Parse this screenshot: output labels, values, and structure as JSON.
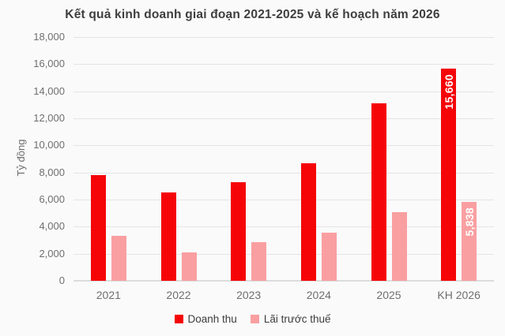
{
  "title": "Kết quả kinh doanh giai đoạn 2021-2025 và kế hoạch năm 2026",
  "chart_data": {
    "type": "bar",
    "title": "Kết quả kinh doanh giai đoạn 2021-2025 và kế hoạch năm 2026",
    "ylabel": "Tỷ đồng",
    "xlabel": "",
    "categories": [
      "2021",
      "2022",
      "2023",
      "2024",
      "2025",
      "KH 2026"
    ],
    "series": [
      {
        "name": "Doanh thu",
        "key": "doanh-thu",
        "color": "#F50508",
        "values": [
          7800,
          6500,
          7300,
          8700,
          13100,
          15660
        ],
        "data_labels": [
          "",
          "",
          "",
          "",
          "",
          "15,660"
        ]
      },
      {
        "name": "Lãi trước thuế",
        "key": "lai-truoc-thue",
        "color": "#F99FA1",
        "values": [
          3350,
          2100,
          2850,
          3550,
          5050,
          5838
        ],
        "data_labels": [
          "",
          "",
          "",
          "",
          "",
          "5,838"
        ]
      }
    ],
    "ylim": [
      0,
      18000
    ],
    "ytick_step": 2000,
    "ytick_labels": [
      "0",
      "2,000",
      "4,000",
      "6,000",
      "8,000",
      "10,000",
      "12,000",
      "14,000",
      "16,000",
      "18,000"
    ],
    "grid": true,
    "legend_position": "bottom"
  },
  "colors": {
    "background": "#FAFAFA",
    "series_doanh_thu": "#F50508",
    "series_lai_truoc_thue": "#F99FA1",
    "gridline": "#E4E4E4",
    "axis_text": "#6F6F6F",
    "title_text": "#3E3E3E",
    "legend_text": "#3C3C3C",
    "bar_label_text": "#FFFFFF"
  }
}
